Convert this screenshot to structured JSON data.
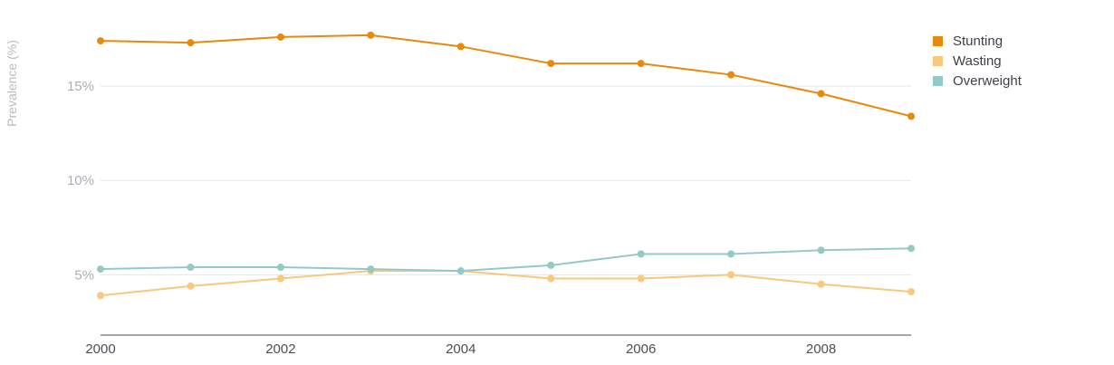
{
  "chart_data": {
    "type": "line",
    "title": "",
    "xlabel": "",
    "ylabel": "Prevalence (%)",
    "x": [
      2000,
      2001,
      2002,
      2003,
      2004,
      2005,
      2006,
      2007,
      2008,
      2009
    ],
    "xlim": [
      2000,
      2009
    ],
    "ylim": [
      1.8,
      18.7
    ],
    "xticks": [
      2000,
      2002,
      2004,
      2006,
      2008
    ],
    "xtick_labels": [
      "2000",
      "2002",
      "2004",
      "2006",
      "2008"
    ],
    "yticks": [
      5,
      10,
      15
    ],
    "ytick_labels": [
      "5%",
      "10%",
      "15%"
    ],
    "grid": true,
    "legend_position": "top-right",
    "series": [
      {
        "name": "Stunting",
        "color": "#e8890c",
        "values": [
          17.4,
          17.3,
          17.6,
          17.7,
          17.1,
          16.2,
          16.2,
          15.6,
          14.6,
          13.4
        ]
      },
      {
        "name": "Wasting",
        "color": "#f7c87d",
        "values": [
          3.9,
          4.4,
          4.8,
          5.2,
          5.2,
          4.8,
          4.8,
          5.0,
          4.5,
          4.1
        ]
      },
      {
        "name": "Overweight",
        "color": "#93c9c6",
        "values": [
          5.3,
          5.4,
          5.4,
          5.3,
          5.2,
          5.5,
          6.1,
          6.1,
          6.3,
          6.4
        ]
      }
    ]
  }
}
